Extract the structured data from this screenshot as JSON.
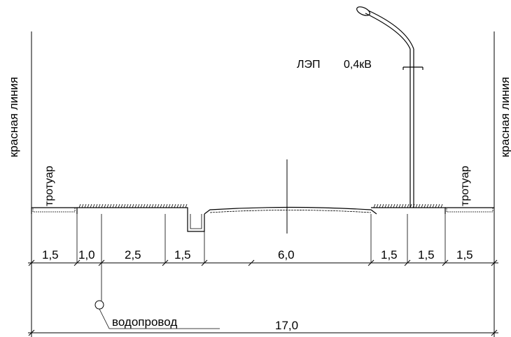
{
  "red_line_label": "красная линия",
  "sidewalk_label": "тротуар",
  "power_line_label": "ЛЭП",
  "voltage_label": "0,4кВ",
  "water_pipe_label": "водопровод",
  "segments": [
    "1,5",
    "1,0",
    "2,5",
    "1,5",
    "6,0",
    "1,5",
    "1,5",
    "1,5"
  ],
  "total_width": "17,0"
}
